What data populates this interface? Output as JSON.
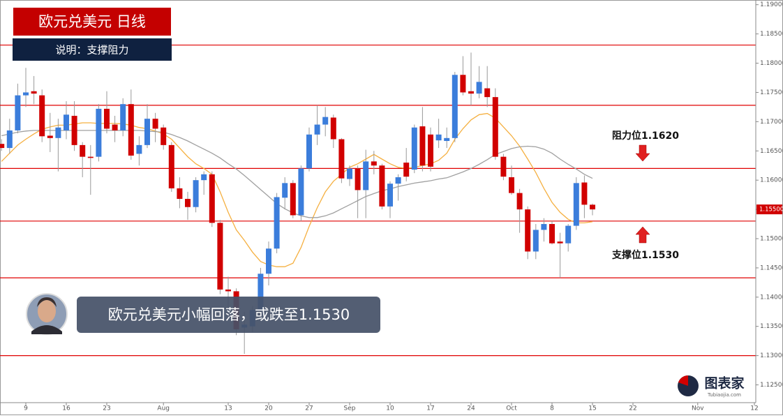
{
  "chart_data": {
    "type": "candlestick",
    "title": "欧元兑美元  日线",
    "subtitle": "说明：支撑阻力",
    "caption": "欧元兑美元小幅回落，或跌至1.1530",
    "annotations": [
      "阻力位1.1620",
      "支撑位1.1530"
    ],
    "logo": [
      "图表家",
      "Tubiaojia.com"
    ],
    "up_color": "#3b7ddb",
    "down_color": "#d10000",
    "categories": [
      null,
      null,
      null,
      "9",
      null,
      null,
      null,
      null,
      "16",
      null,
      null,
      null,
      null,
      "23",
      null,
      null,
      null,
      null,
      null,
      null,
      "Aug",
      null,
      null,
      null,
      null,
      null,
      null,
      null,
      "13",
      null,
      null,
      null,
      null,
      "20",
      null,
      null,
      null,
      null,
      "27",
      null,
      null,
      null,
      null,
      "Sep",
      null,
      null,
      null,
      null,
      "10",
      null,
      null,
      null,
      null,
      "17",
      null,
      null,
      null,
      null,
      "24",
      null,
      null,
      null,
      null,
      "Oct",
      null,
      null,
      null,
      null,
      "8",
      null,
      null,
      null,
      null,
      "15",
      null,
      null,
      null,
      null,
      "22",
      null,
      null,
      null,
      null,
      null,
      null,
      null,
      "Nov",
      null,
      null,
      null,
      null,
      null,
      null,
      "12"
    ],
    "open": [
      1.1662,
      1.1655,
      1.1685,
      1.1745,
      1.1752,
      1.1745,
      1.1676,
      1.1672,
      1.1685,
      1.171,
      1.166,
      1.164,
      1.164,
      1.1722,
      1.1695,
      1.1685,
      1.173,
      1.1645,
      1.166,
      1.1705,
      1.169,
      1.166,
      1.1586,
      1.1568,
      1.1554,
      1.16,
      1.161,
      1.1527,
      1.1413,
      1.141,
      1.1348,
      1.135,
      1.1378,
      1.144,
      1.1483,
      1.157,
      1.1595,
      1.154,
      1.162,
      1.1678,
      1.1695,
      1.1707,
      1.167,
      1.1602,
      1.162,
      1.1583,
      1.1632,
      1.1625,
      1.1555,
      1.1594,
      1.163,
      1.1618,
      1.1692,
      1.1678,
      1.1668,
      1.1667,
      1.1672,
      1.178,
      1.1752,
      1.1748,
      1.1757,
      1.1742,
      1.164,
      1.1605,
      1.1578,
      1.155,
      1.1478,
      1.1515,
      1.1525,
      1.1495,
      1.1492,
      1.1522,
      1.1596,
      1.1558,
      null,
      null,
      null,
      null,
      null,
      null,
      null,
      null,
      null,
      null,
      null,
      null,
      null,
      null,
      null,
      null,
      null,
      null,
      null,
      null
    ],
    "high": [
      1.167,
      1.1705,
      1.1765,
      1.1792,
      1.1778,
      1.1755,
      1.1715,
      1.1705,
      1.1735,
      1.1735,
      1.1665,
      1.166,
      1.173,
      1.1752,
      1.171,
      1.174,
      1.1755,
      1.1675,
      1.173,
      1.1715,
      1.1695,
      1.1665,
      1.1605,
      1.158,
      1.1605,
      1.1615,
      1.1615,
      1.1532,
      1.1435,
      1.1415,
      1.1375,
      1.1385,
      1.145,
      1.1495,
      1.1578,
      1.1605,
      1.16,
      1.1625,
      1.169,
      1.1728,
      1.1725,
      1.1712,
      1.1672,
      1.1625,
      1.1625,
      1.1652,
      1.165,
      1.1628,
      1.1598,
      1.161,
      1.1655,
      1.1695,
      1.1725,
      1.169,
      1.1705,
      1.169,
      1.1785,
      1.1812,
      1.1818,
      1.1795,
      1.1795,
      1.1757,
      1.1645,
      1.1625,
      1.1585,
      1.1555,
      1.1525,
      1.1535,
      1.153,
      1.151,
      1.1525,
      1.1605,
      1.1608,
      1.156,
      null,
      null,
      null,
      null,
      null,
      null,
      null,
      null,
      null,
      null,
      null,
      null,
      null,
      null,
      null,
      null,
      null,
      null,
      null,
      null
    ],
    "low": [
      1.165,
      1.1645,
      1.168,
      1.1725,
      1.173,
      1.1665,
      1.1648,
      1.1615,
      1.167,
      1.165,
      1.1605,
      1.1575,
      1.1632,
      1.168,
      1.1665,
      1.1675,
      1.1635,
      1.1625,
      1.1655,
      1.1665,
      1.1652,
      1.158,
      1.1552,
      1.1532,
      1.1545,
      1.1575,
      1.152,
      1.1405,
      1.1378,
      1.1335,
      1.1303,
      1.134,
      1.137,
      1.142,
      1.1475,
      1.155,
      1.1535,
      1.153,
      1.1615,
      1.166,
      1.1675,
      1.1655,
      1.1595,
      1.159,
      1.1535,
      1.1535,
      1.161,
      1.155,
      1.1535,
      1.1565,
      1.1598,
      1.1612,
      1.1615,
      1.1615,
      1.1655,
      1.1655,
      1.1665,
      1.1745,
      1.1728,
      1.174,
      1.1725,
      1.1635,
      1.16,
      1.1575,
      1.151,
      1.1465,
      1.1465,
      1.1495,
      1.149,
      1.1433,
      1.1478,
      1.1515,
      1.1535,
      1.154,
      null,
      null,
      null,
      null,
      null,
      null,
      null,
      null,
      null,
      null,
      null,
      null,
      null,
      null,
      null,
      null,
      null,
      null,
      null,
      null
    ],
    "close": [
      1.1655,
      1.1685,
      1.1745,
      1.175,
      1.1748,
      1.1675,
      1.1672,
      1.169,
      1.1712,
      1.166,
      1.164,
      1.1638,
      1.1722,
      1.1688,
      1.1685,
      1.173,
      1.1642,
      1.166,
      1.1705,
      1.1688,
      1.166,
      1.1586,
      1.1568,
      1.1554,
      1.16,
      1.161,
      1.1527,
      1.1413,
      1.141,
      1.1345,
      1.1353,
      1.1378,
      1.144,
      1.1483,
      1.1571,
      1.1595,
      1.154,
      1.162,
      1.1678,
      1.1695,
      1.1708,
      1.167,
      1.1603,
      1.162,
      1.1583,
      1.1632,
      1.1625,
      1.1555,
      1.1594,
      1.1605,
      1.1606,
      1.169,
      1.1625,
      1.1623,
      1.1678,
      1.1672,
      1.178,
      1.175,
      1.1748,
      1.1768,
      1.1742,
      1.164,
      1.1606,
      1.1578,
      1.155,
      1.1478,
      1.1515,
      1.1525,
      1.1492,
      1.1492,
      1.1522,
      1.1595,
      1.1558,
      1.155,
      null,
      null,
      null,
      null,
      null,
      null,
      null,
      null,
      null,
      null,
      null,
      null,
      null,
      null,
      null,
      null,
      null,
      null,
      null,
      null
    ],
    "lines": [
      {
        "color": "#f5b041",
        "values": [
          1.1632,
          1.1646,
          1.166,
          1.167,
          1.1679,
          1.1687,
          1.1691,
          1.1694,
          1.1694,
          1.1696,
          1.1698,
          1.1698,
          1.1697,
          1.1697,
          1.1697,
          1.1696,
          1.1694,
          1.169,
          1.1688,
          1.1684,
          1.1679,
          1.167,
          1.1655,
          1.164,
          1.1628,
          1.162,
          1.161,
          1.158,
          1.1545,
          1.1515,
          1.1497,
          1.1477,
          1.1461,
          1.1455,
          1.1452,
          1.1452,
          1.1458,
          1.1485,
          1.1521,
          1.1553,
          1.158,
          1.1598,
          1.161,
          1.1622,
          1.1628,
          1.1636,
          1.1644,
          1.1636,
          1.1628,
          1.1622,
          1.162,
          1.1622,
          1.1625,
          1.1628,
          1.1634,
          1.1646,
          1.167,
          1.1688,
          1.1703,
          1.1712,
          1.1714,
          1.1706,
          1.1691,
          1.1676,
          1.1658,
          1.1636,
          1.1613,
          1.1586,
          1.1562,
          1.1545,
          1.1533,
          1.1527,
          1.1527,
          1.1529,
          null,
          null,
          null,
          null,
          null,
          null,
          null,
          null,
          null,
          null,
          null,
          null,
          null,
          null,
          null,
          null,
          null,
          null,
          null,
          null
        ]
      },
      {
        "color": "#a0a0a0",
        "values": [
          1.1676,
          1.1679,
          1.1682,
          1.1684,
          1.1685,
          1.1685,
          1.1685,
          1.1685,
          1.1685,
          1.1685,
          1.1685,
          1.1685,
          1.1685,
          1.1685,
          1.1685,
          1.1685,
          1.1685,
          1.1685,
          1.1684,
          1.1683,
          1.1682,
          1.1678,
          1.1673,
          1.1667,
          1.166,
          1.1653,
          1.1646,
          1.1638,
          1.1628,
          1.1619,
          1.1608,
          1.1596,
          1.1584,
          1.1572,
          1.156,
          1.1551,
          1.1544,
          1.1539,
          1.1536,
          1.1536,
          1.1539,
          1.1544,
          1.1551,
          1.1558,
          1.1565,
          1.1572,
          1.1577,
          1.1582,
          1.1585,
          1.1589,
          1.1592,
          1.1595,
          1.1597,
          1.1599,
          1.1602,
          1.1604,
          1.1609,
          1.1614,
          1.162,
          1.1627,
          1.1635,
          1.1644,
          1.1649,
          1.1654,
          1.1657,
          1.1658,
          1.1657,
          1.1653,
          1.1646,
          1.1636,
          1.1627,
          1.1619,
          1.161,
          1.1603,
          null,
          null,
          null,
          null,
          null,
          null,
          null,
          null,
          null,
          null,
          null,
          null,
          null,
          null,
          null,
          null,
          null,
          null,
          null,
          null
        ]
      }
    ],
    "hlines": {
      "color": "#e00000",
      "values": [
        1.1831,
        1.1728,
        1.162,
        1.153,
        1.1433,
        1.13
      ]
    },
    "last_price": {
      "value": 1.155,
      "label": "1.15500"
    },
    "ylim": [
      1.1222,
      1.1908
    ],
    "yticks": [
      {
        "value": 1.125,
        "label": "1.12500"
      },
      {
        "value": 1.13,
        "label": "1.13000"
      },
      {
        "value": 1.135,
        "label": "1.13500"
      },
      {
        "value": 1.14,
        "label": "1.14000"
      },
      {
        "value": 1.145,
        "label": "1.14500"
      },
      {
        "value": 1.15,
        "label": "1.15000"
      },
      {
        "value": 1.155,
        "label": "1.15500"
      },
      {
        "value": 1.16,
        "label": "1.16000"
      },
      {
        "value": 1.165,
        "label": "1.16500"
      },
      {
        "value": 1.17,
        "label": "1.17000"
      },
      {
        "value": 1.175,
        "label": "1.17500"
      },
      {
        "value": 1.18,
        "label": "1.18000"
      },
      {
        "value": 1.185,
        "label": "1.18500"
      },
      {
        "value": 1.19,
        "label": "1.19000"
      }
    ]
  }
}
